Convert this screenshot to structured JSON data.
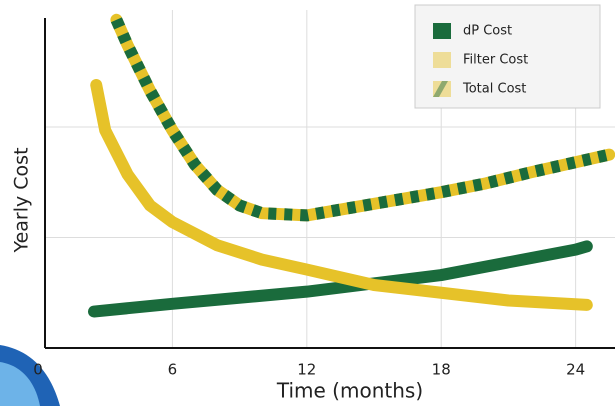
{
  "chart_data": {
    "type": "line",
    "y_label": "Yearly Cost",
    "x_label": "Time (months)",
    "xlim": [
      0,
      25.7
    ],
    "xticks": [
      0,
      6,
      12,
      18,
      24
    ],
    "ylim": [
      0,
      3
    ],
    "yticks": [
      1,
      2
    ],
    "grid": true,
    "legend": "top-right",
    "series": [
      {
        "name": "dP Cost",
        "color": "#1a6b3c",
        "x": [
          2.5,
          6,
          12,
          18,
          24,
          24.5
        ],
        "values": [
          0.33,
          0.4,
          0.51,
          0.66,
          0.89,
          0.92
        ]
      },
      {
        "name": "Filter Cost",
        "color": "#e6c229",
        "x": [
          2.6,
          3,
          4,
          5,
          6,
          8,
          10,
          12,
          15,
          18,
          21,
          24.5
        ],
        "values": [
          2.38,
          1.97,
          1.57,
          1.29,
          1.14,
          0.93,
          0.8,
          0.71,
          0.57,
          0.5,
          0.43,
          0.39
        ]
      },
      {
        "name": "Total Cost",
        "color": "#e6c229",
        "stripe_color": "#1a6b3c",
        "x": [
          3.5,
          4,
          5,
          6,
          7,
          8,
          9,
          10,
          12,
          14,
          16,
          18,
          20,
          22,
          25.5
        ],
        "values": [
          2.97,
          2.74,
          2.33,
          1.97,
          1.66,
          1.43,
          1.29,
          1.22,
          1.2,
          1.27,
          1.34,
          1.41,
          1.49,
          1.59,
          1.75
        ]
      }
    ]
  }
}
